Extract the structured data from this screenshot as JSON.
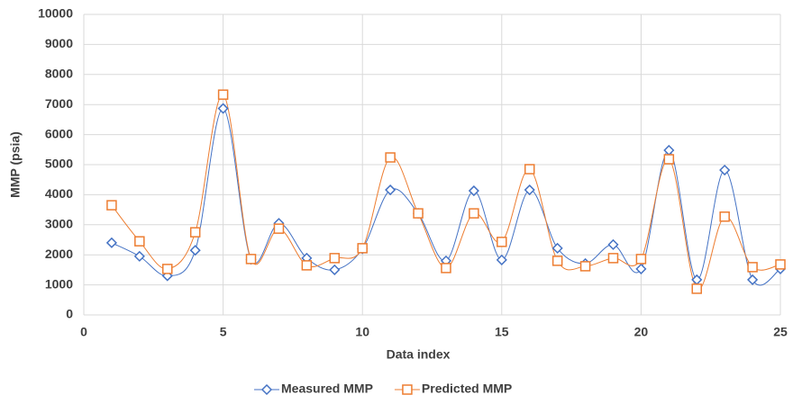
{
  "chart_data": {
    "type": "line",
    "x_label": "Data index",
    "y_label": "MMP (psia)",
    "x": [
      1,
      2,
      3,
      4,
      5,
      6,
      7,
      8,
      9,
      10,
      11,
      12,
      13,
      14,
      15,
      16,
      17,
      18,
      19,
      20,
      21,
      22,
      23,
      24,
      25
    ],
    "series": [
      {
        "name": "Measured MMP",
        "color": "#4472c4",
        "marker": "diamond",
        "values": [
          2400,
          1950,
          1300,
          2150,
          6870,
          1850,
          3050,
          1890,
          1500,
          2200,
          4160,
          3380,
          1800,
          4130,
          1830,
          4160,
          2220,
          1710,
          2340,
          1530,
          5480,
          1170,
          4820,
          1170,
          1530
        ]
      },
      {
        "name": "Predicted MMP",
        "color": "#ed7d31",
        "marker": "square",
        "values": [
          3650,
          2450,
          1530,
          2750,
          7330,
          1860,
          2870,
          1650,
          1890,
          2220,
          5240,
          3380,
          1560,
          3380,
          2430,
          4850,
          1800,
          1620,
          1890,
          1860,
          5180,
          870,
          3270,
          1590,
          1680
        ]
      }
    ],
    "xlim": [
      0,
      25
    ],
    "xticks": [
      0,
      5,
      10,
      15,
      20,
      25
    ],
    "ylim": [
      0,
      10000
    ],
    "yticks": [
      0,
      1000,
      2000,
      3000,
      4000,
      5000,
      6000,
      7000,
      8000,
      9000,
      10000
    ],
    "grid": true,
    "smooth": true,
    "legend": "bottom"
  }
}
